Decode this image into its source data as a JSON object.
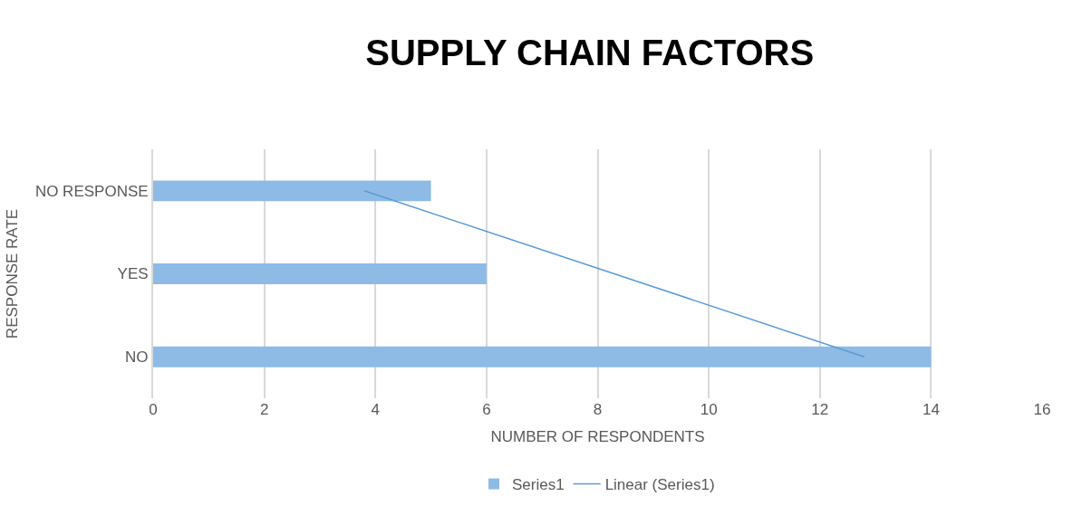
{
  "chart_data": {
    "type": "bar",
    "orientation": "horizontal",
    "title": "SUPPLY CHAIN FACTORS",
    "xlabel": "NUMBER OF RESPONDENTS",
    "ylabel": "RESPONSE RATE",
    "categories": [
      "NO RESPONSE",
      "YES",
      "NO"
    ],
    "series": [
      {
        "name": "Series1",
        "color": "#8dbbe6",
        "values": [
          5,
          6,
          14
        ]
      },
      {
        "name": "Linear (Series1)",
        "type": "line",
        "color": "#5b9bd5",
        "values": [
          3.8,
          8.3,
          12.8
        ]
      }
    ],
    "xlim": [
      0,
      16
    ],
    "xticks": [
      0,
      2,
      4,
      6,
      8,
      10,
      12,
      14,
      16
    ],
    "grid": "x",
    "legend": "bottom"
  }
}
